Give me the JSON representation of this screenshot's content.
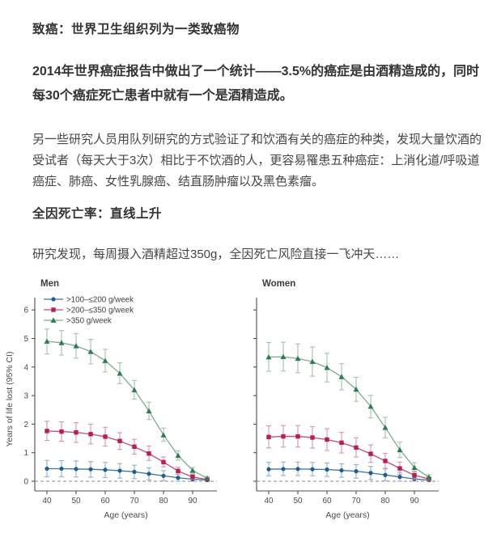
{
  "article": {
    "heading1": "致癌：世界卫生组织列为一类致癌物",
    "para1": "2014年世界癌症报告中做出了一个统计——3.5%的癌症是由酒精造成的，同时每30个癌症死亡患者中就有一个是酒精造成。",
    "para2": "另一些研究人员用队列研究的方式验证了和饮酒有关的癌症的种类，发现大量饮酒的受试者（每天大于3次）相比于不饮酒的人，更容易罹患五种癌症：上消化道/呼吸道癌症、肺癌、女性乳腺癌、结直肠肿瘤以及黑色素瘤。",
    "heading2": "全因死亡率：直线上升",
    "para3": "研究发现，每周摄入酒精超过350g，全因死亡风险直接一飞冲天……"
  },
  "chart_data": [
    {
      "type": "line",
      "title": "Men",
      "xlabel": "Age (years)",
      "ylabel": "Years of life lost (95% CI)",
      "x": [
        40,
        45,
        50,
        55,
        60,
        65,
        70,
        75,
        80,
        85,
        90,
        95
      ],
      "xticks": [
        40,
        50,
        60,
        70,
        80,
        90
      ],
      "yticks": [
        0,
        1,
        2,
        3,
        4,
        5,
        6
      ],
      "ylim": [
        0,
        6.4
      ],
      "grid": false,
      "zero_line": "dashed",
      "show_legend": true,
      "legend_position": "top-left",
      "show_ytick_labels": true,
      "show_ylabel": true,
      "axis_color": "#4d4d4d",
      "series": [
        {
          "name": ">100–≤200 g/week",
          "marker": "circle",
          "color": "#1f5c8f",
          "line_color": "#3d74a3",
          "err_color": "#8fb0cc",
          "values": [
            0.44,
            0.44,
            0.43,
            0.42,
            0.4,
            0.37,
            0.33,
            0.26,
            0.19,
            0.12,
            0.07,
            0.04
          ],
          "lower": [
            0.16,
            0.16,
            0.15,
            0.14,
            0.13,
            0.11,
            0.09,
            0.05,
            0.02,
            0.0,
            0.0,
            0.0
          ],
          "upper": [
            0.73,
            0.72,
            0.71,
            0.69,
            0.66,
            0.62,
            0.56,
            0.47,
            0.37,
            0.25,
            0.15,
            0.09
          ]
        },
        {
          "name": ">200–≤350 g/week",
          "marker": "square",
          "color": "#b81e4e",
          "line_color": "#c64a70",
          "err_color": "#d795aa",
          "values": [
            1.76,
            1.74,
            1.71,
            1.65,
            1.56,
            1.41,
            1.21,
            0.97,
            0.67,
            0.36,
            0.15,
            0.06
          ],
          "lower": [
            1.43,
            1.4,
            1.36,
            1.31,
            1.23,
            1.11,
            0.95,
            0.73,
            0.5,
            0.24,
            0.07,
            0.01
          ],
          "upper": [
            2.1,
            2.08,
            2.05,
            2.0,
            1.89,
            1.7,
            1.47,
            1.23,
            0.85,
            0.49,
            0.24,
            0.11
          ]
        },
        {
          "name": ">350 g/week",
          "marker": "triangle",
          "color": "#2e7b50",
          "line_color": "#7fa993",
          "err_color": "#a3c2ae",
          "values": [
            4.9,
            4.85,
            4.74,
            4.54,
            4.22,
            3.78,
            3.2,
            2.46,
            1.62,
            0.9,
            0.38,
            0.1
          ],
          "lower": [
            4.46,
            4.42,
            4.31,
            4.11,
            3.83,
            3.42,
            2.88,
            2.16,
            1.4,
            0.74,
            0.28,
            0.04
          ],
          "upper": [
            5.33,
            5.28,
            5.17,
            4.97,
            4.62,
            4.15,
            3.53,
            2.77,
            1.86,
            1.07,
            0.48,
            0.17
          ]
        }
      ]
    },
    {
      "type": "line",
      "title": "Women",
      "xlabel": "Age (years)",
      "ylabel": "",
      "x": [
        40,
        45,
        50,
        55,
        60,
        65,
        70,
        75,
        80,
        85,
        90,
        95
      ],
      "xticks": [
        40,
        50,
        60,
        70,
        80,
        90
      ],
      "yticks": [
        0,
        1,
        2,
        3,
        4,
        5,
        6
      ],
      "ylim": [
        0,
        6.4
      ],
      "grid": false,
      "zero_line": "dashed",
      "show_legend": false,
      "legend_position": "none",
      "show_ytick_labels": false,
      "show_ylabel": false,
      "axis_color": "#4d4d4d",
      "series": [
        {
          "name": ">100–≤200 g/week",
          "marker": "circle",
          "color": "#1f5c8f",
          "line_color": "#3d74a3",
          "err_color": "#8fb0cc",
          "values": [
            0.42,
            0.43,
            0.43,
            0.42,
            0.41,
            0.38,
            0.35,
            0.29,
            0.22,
            0.15,
            0.08,
            0.04
          ],
          "lower": [
            0.19,
            0.2,
            0.2,
            0.19,
            0.17,
            0.14,
            0.11,
            0.06,
            0.02,
            0.0,
            0.0,
            0.0
          ],
          "upper": [
            0.66,
            0.67,
            0.67,
            0.66,
            0.64,
            0.61,
            0.58,
            0.52,
            0.43,
            0.31,
            0.18,
            0.09
          ]
        },
        {
          "name": ">200–≤350 g/week",
          "marker": "square",
          "color": "#b81e4e",
          "line_color": "#c64a70",
          "err_color": "#d795aa",
          "values": [
            1.55,
            1.57,
            1.57,
            1.53,
            1.46,
            1.35,
            1.18,
            0.96,
            0.71,
            0.45,
            0.21,
            0.08
          ],
          "lower": [
            1.17,
            1.2,
            1.2,
            1.16,
            1.08,
            0.99,
            0.85,
            0.66,
            0.45,
            0.24,
            0.08,
            0.01
          ],
          "upper": [
            1.94,
            1.95,
            1.95,
            1.91,
            1.84,
            1.71,
            1.52,
            1.27,
            0.98,
            0.67,
            0.35,
            0.15
          ]
        },
        {
          "name": ">350 g/week",
          "marker": "triangle",
          "color": "#2e7b50",
          "line_color": "#7fa993",
          "err_color": "#a3c2ae",
          "values": [
            4.35,
            4.36,
            4.3,
            4.19,
            3.98,
            3.66,
            3.22,
            2.62,
            1.88,
            1.1,
            0.48,
            0.14
          ],
          "lower": [
            3.85,
            3.86,
            3.8,
            3.68,
            3.48,
            3.2,
            2.8,
            2.22,
            1.52,
            0.83,
            0.32,
            0.06
          ],
          "upper": [
            4.86,
            4.87,
            4.81,
            4.7,
            4.48,
            4.12,
            3.64,
            3.01,
            2.24,
            1.37,
            0.65,
            0.23
          ]
        }
      ]
    }
  ]
}
